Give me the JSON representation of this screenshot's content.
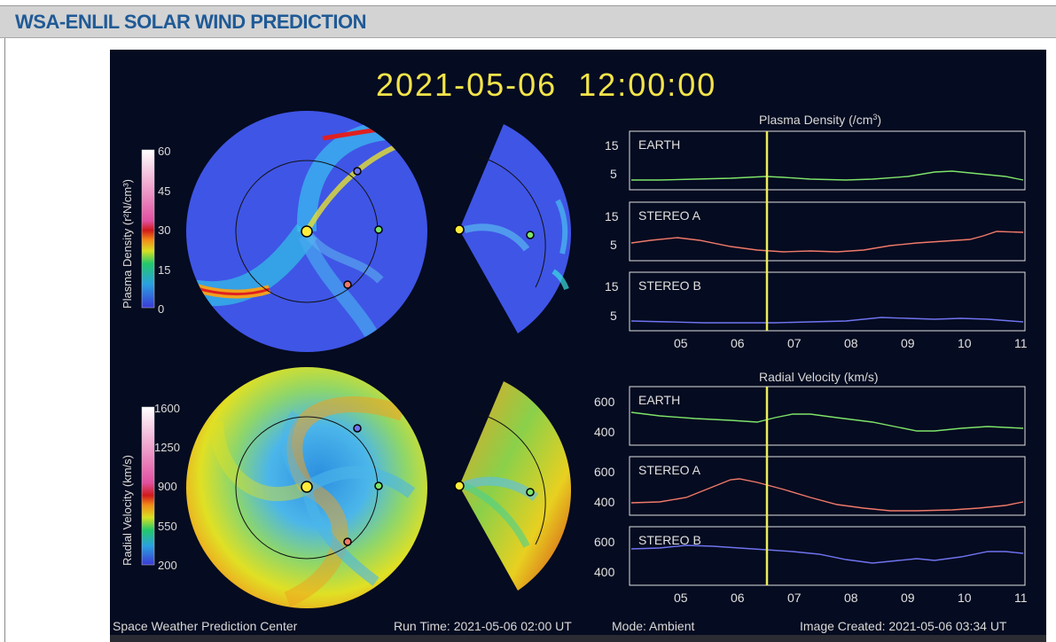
{
  "header": {
    "title": "WSA-ENLIL SOLAR WIND PREDICTION"
  },
  "viz": {
    "timestamp": "2021-05-06  12:00:00",
    "density_panel": {
      "title_main": "Plasma Density (/cm",
      "title_sup": "3",
      "title_end": ")",
      "colorbar_label": "Plasma Density (r²N/cm³)",
      "colorbar_ticks": [
        "60",
        "45",
        "30",
        "15",
        "0"
      ],
      "plots": [
        {
          "label": "EARTH",
          "ticks": [
            "15",
            "5"
          ]
        },
        {
          "label": "STEREO A",
          "ticks": [
            "15",
            "5"
          ]
        },
        {
          "label": "STEREO B",
          "ticks": [
            "15",
            "5"
          ]
        }
      ]
    },
    "velocity_panel": {
      "title": "Radial Velocity (km/s)",
      "colorbar_label": "Radial Velocity (km/s)",
      "colorbar_ticks": [
        "1600",
        "1250",
        "900",
        "550",
        "200"
      ],
      "plots": [
        {
          "label": "EARTH",
          "ticks": [
            "600",
            "400"
          ]
        },
        {
          "label": "STEREO A",
          "ticks": [
            "600",
            "400"
          ]
        },
        {
          "label": "STEREO B",
          "ticks": [
            "600",
            "400"
          ]
        }
      ]
    },
    "x_ticks": [
      "05",
      "06",
      "07",
      "08",
      "09",
      "10",
      "11"
    ],
    "footer": {
      "center": "Space Weather Prediction Center",
      "run_time": "Run Time: 2021-05-06 02:00 UT",
      "mode": "Mode: Ambient",
      "created": "Image Created: 2021-05-06 03:34 UT"
    },
    "colors": {
      "earth_line": "#7ee46a",
      "stereo_a_line": "#f07a6a",
      "stereo_b_line": "#6f74f0",
      "current_time_line": "#ecec5a",
      "timestamp": "#f3e44a"
    }
  }
}
